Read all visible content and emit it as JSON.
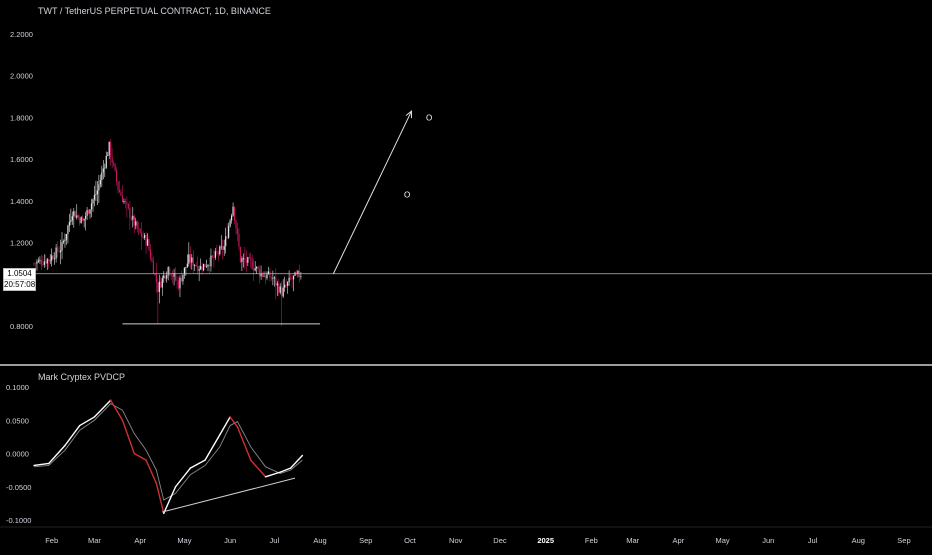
{
  "header": {
    "title": "TWT / TetherUS PERPETUAL CONTRACT, 1D, BINANCE"
  },
  "price_tag": {
    "price": "1.0504",
    "countdown": "20:57:08"
  },
  "indicator": {
    "title": "Mark Cryptex PVDCP"
  },
  "colors": {
    "background": "#000000",
    "candle_up": "#e6e6e6",
    "candle_down": "#c2185b",
    "text": "#d1d4dc",
    "line_white": "#ffffff",
    "line_red": "#d32f2f",
    "separator": "#cfcfcf"
  },
  "chart_data": [
    {
      "type": "candlestick",
      "title": "TWT / TetherUS PERPETUAL CONTRACT, 1D, BINANCE",
      "y_ticks": [
        "2.2000",
        "2.0000",
        "1.8000",
        "1.6000",
        "1.4000",
        "1.2000",
        "0.8000"
      ],
      "ylim": [
        0.75,
        2.25
      ],
      "x_ticks": [
        "Feb",
        "Mar",
        "Apr",
        "May",
        "Jun",
        "Jul",
        "Aug",
        "Sep",
        "Oct",
        "Nov",
        "Dec",
        "2025",
        "Feb",
        "Mar",
        "Apr",
        "May",
        "Jun",
        "Jul",
        "Aug",
        "Sep"
      ],
      "x_range": [
        "2024-01-20",
        "2025-09-20"
      ],
      "price_path": [
        [
          "2024-01-20",
          1.1
        ],
        [
          "2024-01-30",
          1.12
        ],
        [
          "2024-02-08",
          1.18
        ],
        [
          "2024-02-15",
          1.35
        ],
        [
          "2024-02-22",
          1.3
        ],
        [
          "2024-03-03",
          1.45
        ],
        [
          "2024-03-11",
          1.66
        ],
        [
          "2024-03-17",
          1.46
        ],
        [
          "2024-03-24",
          1.35
        ],
        [
          "2024-03-31",
          1.25
        ],
        [
          "2024-04-06",
          1.2
        ],
        [
          "2024-04-13",
          0.98
        ],
        [
          "2024-04-20",
          1.08
        ],
        [
          "2024-04-27",
          1.0
        ],
        [
          "2024-05-04",
          1.12
        ],
        [
          "2024-05-12",
          1.08
        ],
        [
          "2024-05-20",
          1.12
        ],
        [
          "2024-05-28",
          1.18
        ],
        [
          "2024-06-03",
          1.38
        ],
        [
          "2024-06-08",
          1.12
        ],
        [
          "2024-06-15",
          1.1
        ],
        [
          "2024-06-22",
          1.05
        ],
        [
          "2024-06-30",
          1.03
        ],
        [
          "2024-07-06",
          0.96
        ],
        [
          "2024-07-12",
          1.02
        ],
        [
          "2024-07-19",
          1.05
        ]
      ],
      "price_line": 1.0504,
      "support_line": {
        "value": 0.81,
        "from": "2024-03-20",
        "to": "2024-08-01"
      },
      "projection_arrow": {
        "from": [
          "2024-08-10",
          1.05
        ],
        "to": [
          "2024-10-02",
          1.83
        ]
      },
      "markers": [
        {
          "label": "O",
          "date": "2024-09-29",
          "value": 1.43
        },
        {
          "label": "O",
          "date": "2024-10-14",
          "value": 1.8
        }
      ]
    },
    {
      "type": "line",
      "title": "Mark Cryptex PVDCP",
      "y_ticks": [
        "0.1000",
        "0.0500",
        "0.0000",
        "-0.0500",
        "-0.1000"
      ],
      "ylim": [
        -0.11,
        0.11
      ],
      "series": [
        {
          "values_x": [
            "2024-01-20",
            "2024-01-30",
            "2024-02-10",
            "2024-02-20",
            "2024-03-01",
            "2024-03-12",
            "2024-03-20",
            "2024-03-28",
            "2024-04-05",
            "2024-04-12",
            "2024-04-17",
            "2024-04-25",
            "2024-05-05",
            "2024-05-15",
            "2024-05-25",
            "2024-06-01",
            "2024-06-06",
            "2024-06-15",
            "2024-06-25",
            "2024-07-05",
            "2024-07-12",
            "2024-07-20"
          ],
          "values": [
            -0.018,
            -0.015,
            0.012,
            0.042,
            0.055,
            0.08,
            0.05,
            0.0,
            -0.01,
            -0.045,
            -0.09,
            -0.05,
            -0.022,
            -0.01,
            0.028,
            0.055,
            0.04,
            -0.01,
            -0.035,
            -0.028,
            -0.022,
            -0.003
          ]
        },
        {
          "values_x": [
            "2024-01-20",
            "2024-01-30",
            "2024-02-10",
            "2024-02-20",
            "2024-03-01",
            "2024-03-12",
            "2024-03-20",
            "2024-03-28",
            "2024-04-05",
            "2024-04-12",
            "2024-04-17",
            "2024-04-25",
            "2024-05-05",
            "2024-05-15",
            "2024-05-25",
            "2024-06-01",
            "2024-06-06",
            "2024-06-15",
            "2024-06-25",
            "2024-07-05",
            "2024-07-12",
            "2024-07-20"
          ],
          "values": [
            -0.02,
            -0.018,
            0.005,
            0.035,
            0.05,
            0.075,
            0.065,
            0.03,
            0.005,
            -0.025,
            -0.07,
            -0.06,
            -0.032,
            -0.018,
            0.01,
            0.042,
            0.048,
            0.01,
            -0.02,
            -0.03,
            -0.025,
            -0.01
          ]
        }
      ],
      "trendline": {
        "from": [
          "2024-04-16",
          -0.088
        ],
        "to": [
          "2024-07-15",
          -0.037
        ]
      }
    }
  ]
}
